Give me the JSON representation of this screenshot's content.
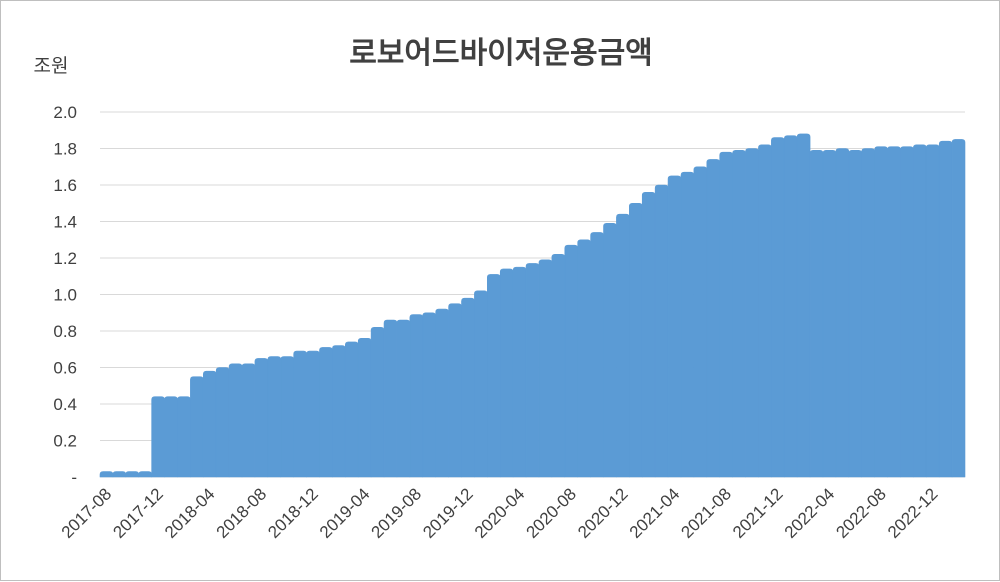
{
  "chart_data": {
    "type": "area",
    "title": "로보어드바이저운용금액",
    "ylabel": "조원",
    "xlabel": "",
    "ylim": [
      0,
      2.0
    ],
    "yticks": [
      "-",
      "0.2",
      "0.4",
      "0.6",
      "0.8",
      "1.0",
      "1.2",
      "1.4",
      "1.6",
      "1.8",
      "2.0"
    ],
    "xticks": [
      "2017-08",
      "2017-12",
      "2018-04",
      "2018-08",
      "2018-12",
      "2019-04",
      "2019-08",
      "2019-12",
      "2020-04",
      "2020-08",
      "2020-12",
      "2021-04",
      "2021-08",
      "2021-12",
      "2022-04",
      "2022-08",
      "2022-12"
    ],
    "grid": true,
    "legend": "none",
    "color": "#5b9bd5",
    "x": [
      "2017-08",
      "2017-09",
      "2017-10",
      "2017-11",
      "2017-12",
      "2018-01",
      "2018-02",
      "2018-03",
      "2018-04",
      "2018-05",
      "2018-06",
      "2018-07",
      "2018-08",
      "2018-09",
      "2018-10",
      "2018-11",
      "2018-12",
      "2019-01",
      "2019-02",
      "2019-03",
      "2019-04",
      "2019-05",
      "2019-06",
      "2019-07",
      "2019-08",
      "2019-09",
      "2019-10",
      "2019-11",
      "2019-12",
      "2020-01",
      "2020-02",
      "2020-03",
      "2020-04",
      "2020-05",
      "2020-06",
      "2020-07",
      "2020-08",
      "2020-09",
      "2020-10",
      "2020-11",
      "2020-12",
      "2021-01",
      "2021-02",
      "2021-03",
      "2021-04",
      "2021-05",
      "2021-06",
      "2021-07",
      "2021-08",
      "2021-09",
      "2021-10",
      "2021-11",
      "2021-12",
      "2022-01",
      "2022-02",
      "2022-03",
      "2022-04",
      "2022-05",
      "2022-06",
      "2022-07",
      "2022-08",
      "2022-09",
      "2022-10",
      "2022-11",
      "2022-12",
      "2023-01",
      "2023-02"
    ],
    "values": [
      0.03,
      0.03,
      0.03,
      0.03,
      0.44,
      0.44,
      0.44,
      0.55,
      0.58,
      0.6,
      0.62,
      0.62,
      0.65,
      0.66,
      0.66,
      0.69,
      0.69,
      0.71,
      0.72,
      0.74,
      0.76,
      0.82,
      0.86,
      0.86,
      0.89,
      0.9,
      0.92,
      0.95,
      0.98,
      1.02,
      1.11,
      1.14,
      1.15,
      1.17,
      1.19,
      1.22,
      1.27,
      1.3,
      1.34,
      1.39,
      1.44,
      1.5,
      1.56,
      1.6,
      1.65,
      1.67,
      1.7,
      1.74,
      1.78,
      1.79,
      1.8,
      1.82,
      1.86,
      1.87,
      1.88,
      1.79,
      1.79,
      1.8,
      1.79,
      1.8,
      1.81,
      1.81,
      1.81,
      1.82,
      1.82,
      1.84,
      1.85
    ]
  }
}
